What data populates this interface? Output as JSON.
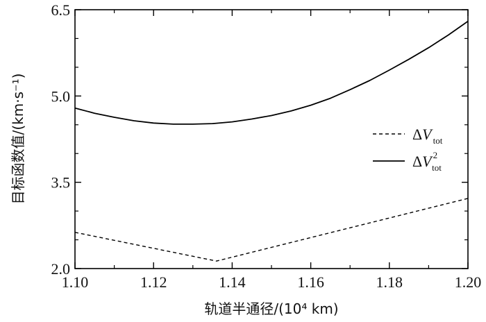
{
  "chart_data": {
    "type": "line",
    "title": "",
    "xlabel": "轨道半通径/(10⁴ km)",
    "ylabel": "目标函数值/(km·s⁻¹)",
    "xlim": [
      1.1,
      1.2
    ],
    "ylim": [
      2.0,
      6.5
    ],
    "xticks": [
      "1.10",
      "1.12",
      "1.14",
      "1.16",
      "1.18",
      "1.20"
    ],
    "yticks": [
      "2.0",
      "3.5",
      "5.0",
      "6.5"
    ],
    "grid": false,
    "legend_position": "right",
    "series": [
      {
        "name": "ΔV_tot",
        "legend_main": "ΔV",
        "legend_italic": "V",
        "legend_sub": "tot",
        "legend_sup": "",
        "style": "dashed",
        "color": "#000000",
        "x": [
          1.1,
          1.136,
          1.2
        ],
        "y": [
          2.63,
          2.13,
          3.22
        ]
      },
      {
        "name": "ΔV_tot^2",
        "legend_main": "ΔV",
        "legend_italic": "V",
        "legend_sub": "tot",
        "legend_sup": "2",
        "style": "solid",
        "color": "#000000",
        "x": [
          1.1,
          1.105,
          1.11,
          1.115,
          1.12,
          1.125,
          1.13,
          1.135,
          1.14,
          1.145,
          1.15,
          1.155,
          1.16,
          1.165,
          1.17,
          1.175,
          1.18,
          1.185,
          1.19,
          1.195,
          1.2
        ],
        "y": [
          4.79,
          4.7,
          4.63,
          4.57,
          4.53,
          4.51,
          4.51,
          4.52,
          4.55,
          4.6,
          4.66,
          4.74,
          4.84,
          4.96,
          5.11,
          5.27,
          5.45,
          5.64,
          5.84,
          6.06,
          6.3
        ]
      }
    ]
  }
}
